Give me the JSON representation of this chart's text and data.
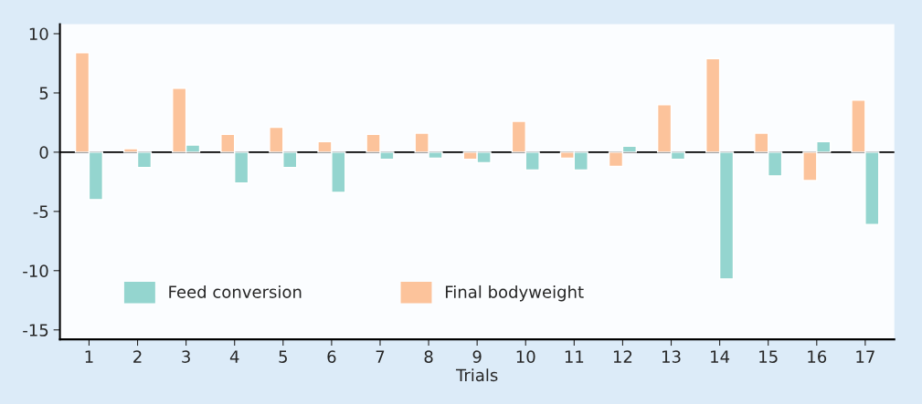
{
  "chart_data": {
    "type": "bar",
    "xlabel": "Trials",
    "categories": [
      "1",
      "2",
      "3",
      "4",
      "5",
      "6",
      "7",
      "8",
      "9",
      "10",
      "11",
      "12",
      "13",
      "14",
      "15",
      "16",
      "17"
    ],
    "series": [
      {
        "name": "Final bodyweight",
        "color": "#fcc39b",
        "values": [
          8.4,
          0.3,
          5.4,
          1.5,
          2.1,
          0.9,
          1.5,
          1.6,
          -0.6,
          2.6,
          -0.5,
          -1.2,
          4.0,
          7.9,
          1.6,
          -2.4,
          4.4
        ]
      },
      {
        "name": "Feed conversion",
        "color": "#94d5cf",
        "values": [
          -4.0,
          -1.3,
          0.6,
          -2.6,
          -1.3,
          -3.4,
          -0.6,
          -0.5,
          -0.9,
          -1.5,
          -1.5,
          0.5,
          -0.6,
          -10.7,
          -2.0,
          0.9,
          -6.1
        ]
      }
    ],
    "ylim": [
      -15.8,
      10.8
    ],
    "yticks": [
      10,
      5,
      0,
      -5,
      -10,
      -15
    ],
    "ref_lines": [
      {
        "axis": "y",
        "value": 0,
        "color": "#000000"
      }
    ],
    "grid": false,
    "legend": "bottom left"
  }
}
